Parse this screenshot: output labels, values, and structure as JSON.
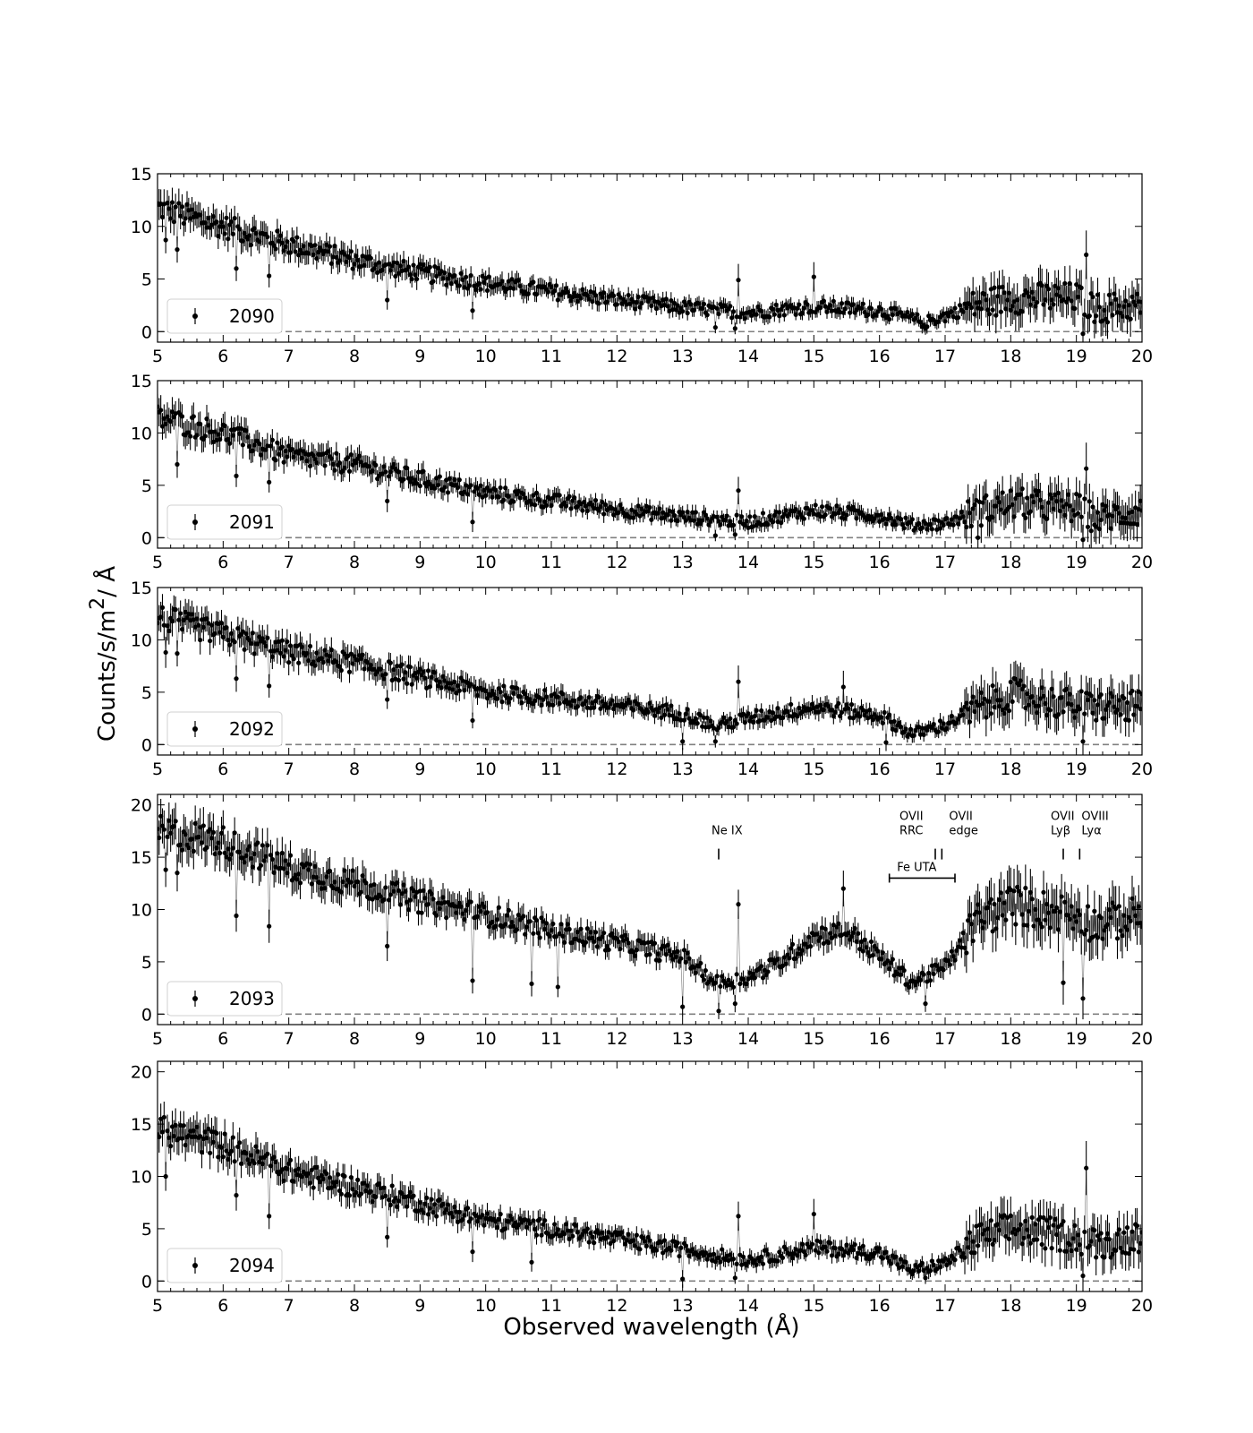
{
  "chart_data": {
    "type": "scatter",
    "xlabel": "Observed wavelength (Å)",
    "ylabel": "Counts/s/m²/ Å",
    "ylabel_main": "Counts/s/m",
    "ylabel_sup": "2",
    "ylabel_tail": "/ Å",
    "xlim": [
      5,
      20
    ],
    "xticks": [
      5,
      6,
      7,
      8,
      9,
      10,
      11,
      12,
      13,
      14,
      15,
      16,
      17,
      18,
      19,
      20
    ],
    "zero_line": true,
    "grid": false,
    "legend_placement": "lower-left",
    "marker_color": "#000000",
    "zero_line_color": "#808080",
    "panels": [
      {
        "legend": "2090",
        "ylim": [
          -1,
          15
        ],
        "yticks": [
          0,
          5,
          10,
          15
        ],
        "profile": [
          [
            5.0,
            11.8
          ],
          [
            6.0,
            10.0
          ],
          [
            7.0,
            8.3
          ],
          [
            8.0,
            6.8
          ],
          [
            9.0,
            5.6
          ],
          [
            10.0,
            4.6
          ],
          [
            11.0,
            3.8
          ],
          [
            12.0,
            3.0
          ],
          [
            13.0,
            2.3
          ],
          [
            14.0,
            1.8
          ],
          [
            15.0,
            2.4
          ],
          [
            16.0,
            2.0
          ],
          [
            16.7,
            0.9
          ],
          [
            17.0,
            1.5
          ],
          [
            17.5,
            2.6
          ],
          [
            18.0,
            3.2
          ],
          [
            19.0,
            3.2
          ],
          [
            19.3,
            2.2
          ],
          [
            20.0,
            2.5
          ]
        ],
        "dips": [
          [
            5.13,
            8.7
          ],
          [
            5.3,
            7.8
          ],
          [
            6.2,
            6.0
          ],
          [
            6.7,
            5.3
          ],
          [
            8.5,
            3.0
          ],
          [
            9.8,
            2.0
          ],
          [
            13.5,
            0.4
          ],
          [
            13.8,
            0.3
          ],
          [
            16.7,
            0.3
          ],
          [
            19.1,
            -0.2
          ]
        ],
        "spikes": [
          [
            13.85,
            4.9
          ],
          [
            15.0,
            5.2
          ],
          [
            19.15,
            7.3
          ]
        ]
      },
      {
        "legend": "2091",
        "ylim": [
          -1,
          15
        ],
        "yticks": [
          0,
          5,
          10,
          15
        ],
        "profile": [
          [
            5.0,
            11.5
          ],
          [
            6.0,
            10.0
          ],
          [
            7.0,
            7.8
          ],
          [
            8.0,
            7.0
          ],
          [
            9.0,
            5.6
          ],
          [
            10.0,
            4.3
          ],
          [
            11.0,
            3.5
          ],
          [
            12.0,
            2.7
          ],
          [
            13.0,
            2.0
          ],
          [
            14.0,
            1.5
          ],
          [
            15.0,
            2.6
          ],
          [
            16.0,
            2.1
          ],
          [
            16.5,
            1.2
          ],
          [
            17.0,
            1.4
          ],
          [
            17.5,
            2.5
          ],
          [
            18.0,
            3.3
          ],
          [
            19.0,
            2.8
          ],
          [
            19.3,
            1.8
          ],
          [
            20.0,
            2.6
          ]
        ],
        "dips": [
          [
            5.3,
            7.0
          ],
          [
            6.2,
            5.9
          ],
          [
            6.7,
            5.3
          ],
          [
            8.5,
            3.5
          ],
          [
            9.8,
            1.5
          ],
          [
            13.5,
            0.2
          ],
          [
            13.8,
            0.3
          ],
          [
            17.5,
            0.0
          ],
          [
            19.1,
            -0.2
          ]
        ],
        "spikes": [
          [
            13.85,
            4.5
          ],
          [
            19.15,
            6.6
          ]
        ]
      },
      {
        "legend": "2092",
        "ylim": [
          -1,
          15
        ],
        "yticks": [
          0,
          5,
          10,
          15
        ],
        "profile": [
          [
            5.0,
            12.2
          ],
          [
            6.0,
            10.5
          ],
          [
            7.0,
            8.8
          ],
          [
            8.0,
            7.8
          ],
          [
            9.0,
            6.4
          ],
          [
            10.0,
            5.0
          ],
          [
            11.0,
            4.4
          ],
          [
            12.0,
            3.7
          ],
          [
            13.0,
            3.0
          ],
          [
            13.5,
            1.8
          ],
          [
            14.0,
            2.5
          ],
          [
            15.0,
            3.6
          ],
          [
            16.0,
            2.8
          ],
          [
            16.5,
            1.0
          ],
          [
            17.0,
            1.9
          ],
          [
            17.5,
            3.5
          ],
          [
            18.0,
            4.8
          ],
          [
            19.0,
            3.7
          ],
          [
            20.0,
            3.6
          ]
        ],
        "dips": [
          [
            5.13,
            8.8
          ],
          [
            5.3,
            8.7
          ],
          [
            6.2,
            6.3
          ],
          [
            6.7,
            5.6
          ],
          [
            8.5,
            4.3
          ],
          [
            9.8,
            2.3
          ],
          [
            13.0,
            0.3
          ],
          [
            13.5,
            0.3
          ],
          [
            16.1,
            0.2
          ],
          [
            19.1,
            0.3
          ]
        ],
        "spikes": [
          [
            13.85,
            6.0
          ],
          [
            15.45,
            5.5
          ]
        ]
      },
      {
        "legend": "2093",
        "ylim": [
          -1,
          21
        ],
        "yticks": [
          0,
          5,
          10,
          15,
          20
        ],
        "profile": [
          [
            5.0,
            17.5
          ],
          [
            6.0,
            16.5
          ],
          [
            7.0,
            14.0
          ],
          [
            8.0,
            12.5
          ],
          [
            9.0,
            10.8
          ],
          [
            10.0,
            9.5
          ],
          [
            11.0,
            8.0
          ],
          [
            12.0,
            6.8
          ],
          [
            13.0,
            5.5
          ],
          [
            13.5,
            3.0
          ],
          [
            14.0,
            3.5
          ],
          [
            14.5,
            5.0
          ],
          [
            15.0,
            7.5
          ],
          [
            15.5,
            8.0
          ],
          [
            16.0,
            5.5
          ],
          [
            16.5,
            3.0
          ],
          [
            17.0,
            4.5
          ],
          [
            17.5,
            9.0
          ],
          [
            18.0,
            10.5
          ],
          [
            19.0,
            9.5
          ],
          [
            19.3,
            8.5
          ],
          [
            20.0,
            9.5
          ]
        ],
        "dips": [
          [
            5.13,
            13.8
          ],
          [
            5.3,
            13.5
          ],
          [
            6.2,
            9.4
          ],
          [
            6.7,
            8.4
          ],
          [
            8.5,
            6.5
          ],
          [
            9.8,
            3.2
          ],
          [
            10.7,
            2.9
          ],
          [
            11.1,
            2.6
          ],
          [
            13.0,
            0.7
          ],
          [
            13.55,
            0.3
          ],
          [
            13.8,
            1.0
          ],
          [
            16.7,
            1.0
          ],
          [
            18.8,
            3.0
          ],
          [
            19.1,
            1.5
          ]
        ],
        "spikes": [
          [
            13.85,
            10.5
          ],
          [
            15.45,
            12.0
          ]
        ]
      },
      {
        "legend": "2094",
        "ylim": [
          -1,
          21
        ],
        "yticks": [
          0,
          5,
          10,
          15,
          20
        ],
        "profile": [
          [
            5.0,
            14.5
          ],
          [
            6.0,
            13.0
          ],
          [
            7.0,
            10.5
          ],
          [
            8.0,
            9.0
          ],
          [
            9.0,
            7.5
          ],
          [
            10.0,
            5.8
          ],
          [
            11.0,
            5.0
          ],
          [
            12.0,
            4.0
          ],
          [
            13.0,
            3.0
          ],
          [
            14.0,
            2.0
          ],
          [
            15.0,
            3.2
          ],
          [
            16.0,
            2.7
          ],
          [
            16.5,
            1.0
          ],
          [
            17.0,
            1.7
          ],
          [
            17.5,
            4.0
          ],
          [
            18.0,
            5.0
          ],
          [
            19.0,
            4.2
          ],
          [
            19.3,
            3.5
          ],
          [
            20.0,
            4.3
          ]
        ],
        "dips": [
          [
            5.13,
            10.0
          ],
          [
            6.2,
            8.2
          ],
          [
            6.7,
            6.2
          ],
          [
            8.5,
            4.2
          ],
          [
            9.8,
            2.8
          ],
          [
            10.7,
            1.8
          ],
          [
            13.0,
            0.2
          ],
          [
            13.8,
            0.3
          ],
          [
            16.7,
            0.3
          ],
          [
            19.1,
            0.5
          ]
        ],
        "spikes": [
          [
            13.85,
            6.2
          ],
          [
            15.0,
            6.4
          ],
          [
            19.15,
            10.8
          ]
        ]
      }
    ],
    "annotations": {
      "panel": 3,
      "lines": [
        {
          "label": [
            "Ne IX"
          ],
          "x": 13.55,
          "y": 15.3
        },
        {
          "label": [
            "OVII",
            "RRC"
          ],
          "x": 16.85,
          "y": 15.3
        },
        {
          "label": [
            "OVII",
            "edge"
          ],
          "x": 16.95,
          "y": 15.3
        },
        {
          "label": [
            "OVII",
            "Lyβ"
          ],
          "x": 18.8,
          "y": 15.3
        },
        {
          "label": [
            "OVIII",
            "Lyα"
          ],
          "x": 19.05,
          "y": 15.3
        }
      ],
      "band": {
        "label": "Fe UTA",
        "x1": 16.15,
        "x2": 17.15,
        "y": 13.0
      }
    }
  }
}
